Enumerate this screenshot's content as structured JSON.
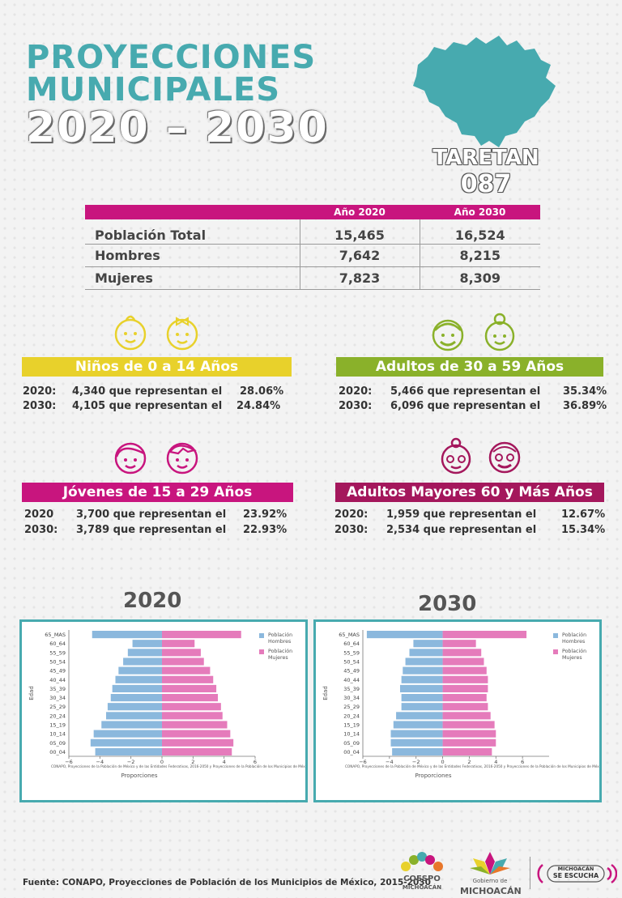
{
  "header": {
    "line1": "PROYECCIONES",
    "line2": "MUNICIPALES",
    "line3": "2020 – 2030",
    "municipality": "TARETAN",
    "code": "087"
  },
  "colors": {
    "teal": "#47aaaf",
    "magenta": "#c8157e",
    "yellow": "#e8d12b",
    "green": "#8ab12a",
    "bar_hombres": "#8bb8dd",
    "bar_mujeres": "#e57bbb"
  },
  "population_table": {
    "headers": [
      "",
      "Año 2020",
      "Año 2030"
    ],
    "rows": [
      {
        "label": "Población Total",
        "y2020": "15,465",
        "y2030": "16,524"
      },
      {
        "label": "Hombres",
        "y2020": "7,642",
        "y2030": "8,215"
      },
      {
        "label": "Mujeres",
        "y2020": "7,823",
        "y2030": "8,309"
      }
    ]
  },
  "groups": [
    {
      "title": "Niños de 0 a 14 Años",
      "color": "#e8d12b",
      "rows": [
        {
          "year": "2020:",
          "text": "4,340 que representan el",
          "pct": "28.06%"
        },
        {
          "year": "2030:",
          "text": "4,105 que representan el",
          "pct": "24.84%"
        }
      ]
    },
    {
      "title": "Adultos de 30 a 59 Años",
      "color": "#8ab12a",
      "rows": [
        {
          "year": "2020:",
          "text": "5,466 que representan el",
          "pct": "35.34%"
        },
        {
          "year": "2030:",
          "text": "6,096 que representan el",
          "pct": "36.89%"
        }
      ]
    },
    {
      "title": "Jóvenes de 15 a 29 Años",
      "color": "#c8157e",
      "rows": [
        {
          "year": "2020",
          "text": "3,700 que representan el",
          "pct": "23.92%"
        },
        {
          "year": "2030:",
          "text": "3,789 que representan el",
          "pct": "22.93%"
        }
      ]
    },
    {
      "title": "Adultos Mayores  60 y Más Años",
      "color": "#a4175c",
      "rows": [
        {
          "year": "2020:",
          "text": "1,959 que representan el",
          "pct": "12.67%"
        },
        {
          "year": "2030:",
          "text": "2,534 que representan el",
          "pct": "15.34%"
        }
      ]
    }
  ],
  "chart_labels": {
    "y2020": "2020",
    "y2030": "2030"
  },
  "chart_data": [
    {
      "type": "bar",
      "orientation": "horizontal",
      "title": "2020",
      "categories": [
        "65_MAS",
        "60_64",
        "55_59",
        "50_54",
        "45_49",
        "40_44",
        "35_39",
        "30_34",
        "25_29",
        "20_24",
        "15_19",
        "10_14",
        "05_09",
        "00_04"
      ],
      "series": [
        {
          "name": "Población Hombres",
          "values": [
            -4.5,
            -1.9,
            -2.2,
            -2.5,
            -2.8,
            -3.0,
            -3.2,
            -3.3,
            -3.5,
            -3.6,
            -3.9,
            -4.4,
            -4.6,
            -4.3
          ]
        },
        {
          "name": "Población Mujeres",
          "values": [
            5.1,
            2.1,
            2.5,
            2.7,
            3.1,
            3.3,
            3.5,
            3.6,
            3.8,
            3.9,
            4.2,
            4.4,
            4.6,
            4.5
          ]
        }
      ],
      "xlim": [
        -6,
        6
      ],
      "xticks": [
        "−6",
        "−4",
        "−2",
        "0",
        "2",
        "4",
        "6"
      ],
      "xlabel": "Proporciones",
      "ylabel": "Edad",
      "legend": "top-right",
      "source_note": "CONAPO, Proyecciones de la Población de México y de las Entidades Federativas, 2016-2050 y Proyecciones de la Población de los Municipios de México, ..."
    },
    {
      "type": "bar",
      "orientation": "horizontal",
      "title": "2030",
      "categories": [
        "65_MAS",
        "60_64",
        "55_59",
        "50_54",
        "45_49",
        "40_44",
        "35_39",
        "30_34",
        "25_29",
        "20_24",
        "15_19",
        "10_14",
        "05_09",
        "00_04"
      ],
      "series": [
        {
          "name": "Población Hombres",
          "values": [
            -5.7,
            -2.2,
            -2.5,
            -2.8,
            -3.0,
            -3.1,
            -3.2,
            -3.1,
            -3.1,
            -3.5,
            -3.7,
            -3.9,
            -3.9,
            -3.8
          ]
        },
        {
          "name": "Población Mujeres",
          "values": [
            6.3,
            2.5,
            2.9,
            3.1,
            3.3,
            3.4,
            3.4,
            3.3,
            3.4,
            3.6,
            3.9,
            4.0,
            4.0,
            3.7
          ]
        }
      ],
      "xlim": [
        -6,
        8
      ],
      "xticks": [
        "−6",
        "−4",
        "−2",
        "0",
        "2",
        "4",
        "6"
      ],
      "xlabel": "Proporciones",
      "ylabel": "Edad",
      "legend": "top-right",
      "source_note": "CONAPO, Proyecciones de la Población de México y de las Entidades Federativas, 2016-2050 y Proyecciones de la Población de los Municipios de México, ..."
    }
  ],
  "footer": {
    "source": "Fuente: CONAPO, Proyecciones de Población de los Municipios de México, 2015-2030",
    "logo1_line1": "COESPO",
    "logo1_line2": "MICHOACÁN",
    "logo2_line1": "Gobierno de",
    "logo2_line2": "MICHOACÁN",
    "logo3_line1": "MICHOACÁN",
    "logo3_line2": "SE ESCUCHA"
  }
}
